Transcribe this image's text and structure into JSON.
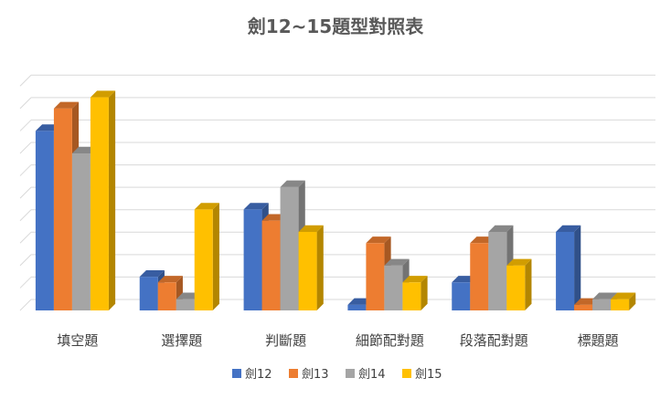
{
  "chart_data": {
    "type": "bar",
    "title": "劍12~15題型對照表",
    "categories": [
      "填空題",
      "選擇題",
      "判斷題",
      "細節配對題",
      "段落配對題",
      "標題題"
    ],
    "series": [
      {
        "name": "劍12",
        "color": "#4472C4",
        "values": [
          16,
          3,
          9,
          0.5,
          2.5,
          7
        ]
      },
      {
        "name": "劍13",
        "color": "#ED7D31",
        "values": [
          18,
          2.5,
          8,
          6,
          6,
          0.5
        ]
      },
      {
        "name": "劍14",
        "color": "#A5A5A5",
        "values": [
          14,
          1,
          11,
          4,
          7,
          1
        ]
      },
      {
        "name": "劍15",
        "color": "#FFC000",
        "values": [
          19,
          9,
          7,
          2.5,
          4,
          1
        ]
      }
    ],
    "ylim": [
      0,
      21
    ],
    "grid": true,
    "legend": "bottom"
  }
}
